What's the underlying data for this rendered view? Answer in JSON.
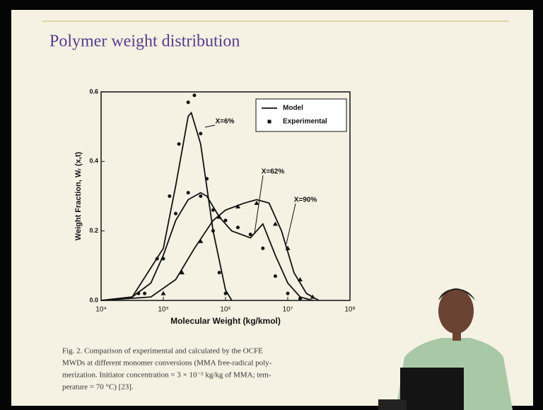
{
  "slide": {
    "title": "Polymer weight distribution",
    "caption": [
      "Fig. 2. Comparison of experimental and calculated by the OCFE",
      "MWDs at different monomer conversions (MMA free-radical poly-",
      "merization. Initiator concentration = 3 × 10⁻² kg/kg of MMA; tem-",
      "perature = 70 °C) [23]."
    ]
  },
  "chart_data": {
    "type": "line",
    "x_label": "Molecular Weight (kg/kmol)",
    "y_label": "Weight Fraction, Wᵣ (x,t)",
    "x_log": true,
    "xlim": [
      10000,
      100000000
    ],
    "xticks": [
      {
        "value": 10000,
        "label": "10⁴"
      },
      {
        "value": 100000,
        "label": "10⁵"
      },
      {
        "value": 1000000,
        "label": "10⁶"
      },
      {
        "value": 10000000,
        "label": "10⁷"
      },
      {
        "value": 100000000,
        "label": "10⁸"
      }
    ],
    "ylim": [
      0,
      0.6
    ],
    "yticks": [
      {
        "value": 0,
        "label": "0.0"
      },
      0.2,
      0.4,
      0.6
    ],
    "legend": "upper right",
    "series": [
      {
        "name": "Model",
        "color": "#111111",
        "marker": "line",
        "groups": [
          {
            "label": "X=6%",
            "x": [
              10000,
              31600,
              100000,
              158000,
              251000,
              282000,
              398000,
              631000,
              1000000,
              1260000
            ],
            "values": [
              0,
              0.01,
              0.15,
              0.33,
              0.53,
              0.54,
              0.45,
              0.2,
              0.03,
              0
            ]
          },
          {
            "label": "X=62%",
            "x": [
              10000,
              31600,
              63100,
              100000,
              158000,
              251000,
              398000,
              501000,
              794000,
              1260000,
              2510000,
              3980000,
              6310000,
              10000000,
              15800000,
              25100000
            ],
            "values": [
              0,
              0.01,
              0.05,
              0.13,
              0.23,
              0.29,
              0.31,
              0.3,
              0.24,
              0.2,
              0.18,
              0.22,
              0.13,
              0.05,
              0.01,
              0
            ]
          },
          {
            "label": "X=90%",
            "x": [
              10000,
              63100,
              158000,
              316000,
              631000,
              1000000,
              2000000,
              3160000,
              5010000,
              7940000,
              12600000,
              20000000,
              31600000
            ],
            "values": [
              0,
              0.01,
              0.06,
              0.15,
              0.23,
              0.26,
              0.28,
              0.29,
              0.28,
              0.2,
              0.08,
              0.02,
              0
            ]
          }
        ]
      },
      {
        "name": "Experimental",
        "color": "#111111",
        "marker": "square",
        "groups": [
          {
            "marker": "circle",
            "x": [
              39800,
              79400,
              126000,
              178000,
              251000,
              316000,
              398000,
              501000,
              631000,
              794000,
              1000000
            ],
            "values": [
              0.02,
              0.12,
              0.3,
              0.45,
              0.57,
              0.59,
              0.48,
              0.35,
              0.2,
              0.08,
              0.02
            ]
          },
          {
            "marker": "circle",
            "x": [
              50100,
              100000,
              158000,
              251000,
              398000,
              631000,
              1000000,
              1580000,
              2510000,
              3980000,
              6310000,
              10000000,
              15800000
            ],
            "values": [
              0.02,
              0.12,
              0.25,
              0.31,
              0.3,
              0.26,
              0.23,
              0.21,
              0.19,
              0.15,
              0.07,
              0.02,
              0.005
            ]
          },
          {
            "marker": "triangle",
            "x": [
              100000,
              200000,
              398000,
              794000,
              1580000,
              3160000,
              6310000,
              10000000,
              15800000,
              25100000
            ],
            "values": [
              0.02,
              0.08,
              0.17,
              0.24,
              0.27,
              0.28,
              0.22,
              0.15,
              0.06,
              0.01
            ]
          }
        ]
      }
    ]
  }
}
